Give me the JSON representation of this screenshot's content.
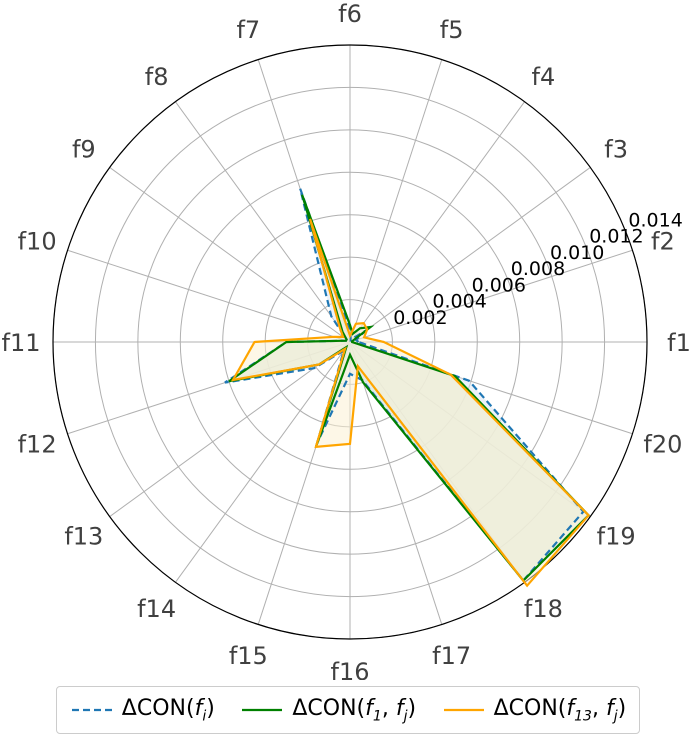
{
  "chart_data": {
    "type": "radar",
    "title": "",
    "categories": [
      "f1",
      "f2",
      "f3",
      "f4",
      "f5",
      "f6",
      "f7",
      "f8",
      "f9",
      "f10",
      "f11",
      "f12",
      "f13",
      "f14",
      "f15",
      "f16",
      "f17",
      "f18",
      "f19",
      "f20"
    ],
    "radial_ticks": [
      "0.002",
      "0.004",
      "0.006",
      "0.008",
      "0.010",
      "0.012",
      "0.014"
    ],
    "rlim": [
      0,
      0.014
    ],
    "grid": true,
    "legend_position": "bottom",
    "series": [
      {
        "name": "ΔCON(f_i)",
        "color": "#1f77b4",
        "style": "dashed",
        "fill": "#dce8f4",
        "values": [
          0.0004,
          0.0003,
          0.0009,
          0.0002,
          0.0001,
          0.0006,
          0.0076,
          0.0015,
          0.0002,
          0.0002,
          0.003,
          0.0062,
          0.0021,
          0.0005,
          0.005,
          0.0015,
          0.0019,
          0.0139,
          0.0136,
          0.0059
        ]
      },
      {
        "name": "ΔCON(f_1, f_j)",
        "color": "#008000",
        "style": "solid",
        "fill": "#d9ead9",
        "values": [
          0.0001,
          0.0001,
          0.0012,
          0.0008,
          0.0004,
          0.0008,
          0.0073,
          0.0006,
          0.0002,
          0.0002,
          0.003,
          0.006,
          0.0018,
          0.0003,
          0.0052,
          0.0006,
          0.002,
          0.0139,
          0.0139,
          0.0052
        ]
      },
      {
        "name": "ΔCON(f_13, f_j)",
        "color": "#ffa500",
        "style": "solid",
        "fill": "#fbf1d4",
        "values": [
          0.0016,
          0.0007,
          0.001,
          0.0011,
          0.0009,
          0.0003,
          0.0061,
          0.0008,
          0.0004,
          0.0008,
          0.0045,
          0.0058,
          0.0018,
          0.0004,
          0.0052,
          0.0048,
          0.0012,
          0.0142,
          0.0139,
          0.005
        ]
      }
    ],
    "legend": [
      {
        "label": "ΔCON(",
        "sym": "f",
        "sub": "i",
        "sub2": ""
      },
      {
        "label": "ΔCON(",
        "sym": "f",
        "sub": "1",
        "sub2": "j"
      },
      {
        "label": "ΔCON(",
        "sym": "f",
        "sub": "13",
        "sub2": "j"
      }
    ]
  }
}
